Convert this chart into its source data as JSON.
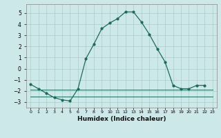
{
  "xlabel": "Humidex (Indice chaleur)",
  "x": [
    0,
    1,
    2,
    3,
    4,
    5,
    6,
    7,
    8,
    9,
    10,
    11,
    12,
    13,
    14,
    15,
    16,
    17,
    18,
    19,
    20,
    21,
    22,
    23
  ],
  "y_main": [
    -1.4,
    -1.8,
    -2.2,
    -2.6,
    -2.8,
    -2.9,
    -1.8,
    0.9,
    2.2,
    3.6,
    4.1,
    4.5,
    5.1,
    5.1,
    4.2,
    3.1,
    1.8,
    0.6,
    -1.5,
    -1.8,
    -1.8,
    -1.5,
    -1.5,
    null
  ],
  "y_line2": [
    -1.9,
    -1.9,
    -1.9,
    -1.9,
    -1.9,
    -1.9,
    -1.9,
    -1.9,
    -1.9,
    -1.9,
    -1.9,
    -1.9,
    -1.9,
    -1.9,
    -1.9,
    -1.9,
    -1.9,
    -1.9,
    -1.9,
    -1.9,
    -1.9,
    -1.9,
    -1.9,
    -1.9
  ],
  "y_line3": [
    -2.5,
    -2.5,
    -2.5,
    -2.5,
    -2.5,
    -2.5,
    -2.5,
    -2.5,
    -2.5,
    -2.5,
    -2.5,
    -2.5,
    -2.5,
    -2.5,
    -2.5,
    -2.5,
    -2.5,
    -2.5,
    -2.5,
    -2.5,
    -2.5,
    -2.5,
    -2.5,
    -2.5
  ],
  "line_color": "#1a6b5a",
  "bg_color": "#cce8e8",
  "grid_color": "#aacccc",
  "ylim": [
    -3.5,
    5.8
  ],
  "yticks": [
    -3,
    -2,
    -1,
    0,
    1,
    2,
    3,
    4,
    5
  ],
  "xlim": [
    -0.5,
    23.5
  ],
  "figw": 3.2,
  "figh": 2.0,
  "dpi": 100
}
